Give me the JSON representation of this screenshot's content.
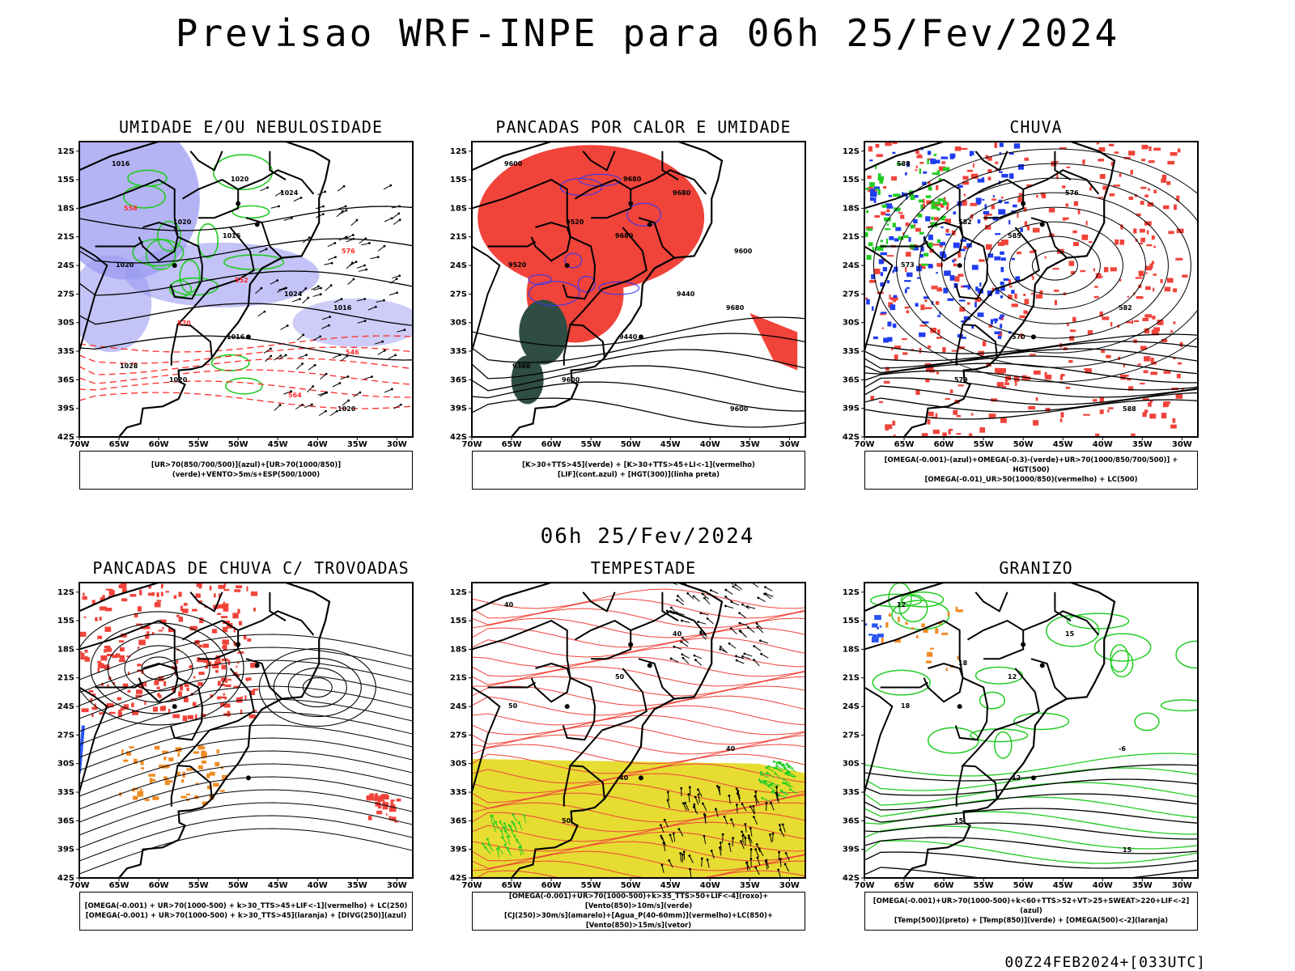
{
  "title": "Previsao WRF-INPE  para 06h 25/Fev/2024",
  "mid_title": "06h 25/Fev/2024",
  "run_stamp": "00Z24FEB2024+[033UTC]",
  "axes": {
    "lat_labels": [
      "12S",
      "15S",
      "18S",
      "21S",
      "24S",
      "27S",
      "30S",
      "33S",
      "36S",
      "39S",
      "42S"
    ],
    "lon_labels": [
      "70W",
      "65W",
      "60W",
      "55W",
      "50W",
      "45W",
      "40W",
      "35W",
      "30W"
    ]
  },
  "panels": [
    {
      "id": "umidade",
      "title": "UMIDADE E/OU NEBULOSIDADE",
      "legend": [
        "[UR>70(850/700/500)](azul)+[UR>70(1000/850)](verde)+VENTO>5m/s+ESP(500/1000)"
      ],
      "contour_labels": [
        "1016",
        "1016",
        "1016",
        "1020",
        "1024",
        "1020",
        "1016",
        "1020",
        "1020",
        "1024",
        "1028",
        "1020",
        "576",
        "570",
        "564",
        "558",
        "552",
        "546"
      ],
      "colors": {
        "shade": "#9b9bf2",
        "contour": "#22cc22",
        "dashed": "#ff2a2a"
      }
    },
    {
      "id": "pancadas_calor",
      "title": "PANCADAS POR CALOR E UMIDADE",
      "legend": [
        "[K>30+TTS>45](verde) + [K>30+TTS>45+LI<-1](vermelho)",
        "[LIF](cont.azul) + [HGT(300)](linha preta)"
      ],
      "contour_labels": [
        "9600",
        "9680",
        "9680",
        "9600",
        "9680",
        "9520",
        "9440",
        "9600",
        "9520",
        "9440",
        "9360",
        "9680",
        "9600"
      ],
      "colors": {
        "red": "#f0433a",
        "green": "#2f4d45",
        "blue": "#3737f0"
      }
    },
    {
      "id": "chuva",
      "title": "CHUVA",
      "legend": [
        "[OMEGA(-0.001)-(azul)+OMEGA(-0.3)-(verde)+UR>70(1000/850/700/500)] + HGT(500)",
        "[OMEGA(-0.01)_UR>50(1000/850)(vermelho) + LC(500)"
      ],
      "contour_labels": [
        "588",
        "585",
        "582",
        "579",
        "576",
        "573",
        "570",
        "588",
        "582"
      ],
      "colors": {
        "red": "#f0433a",
        "blue": "#1f3cf0",
        "green": "#22cc22"
      }
    },
    {
      "id": "pancadas_trovoadas",
      "title": "PANCADAS DE CHUVA C/ TROVOADAS",
      "legend": [
        "[OMEGA(-0.001) + UR>70(1000-500) + k>30_TTS>45+LIF<-1](vermelho) + LC(250)",
        "[OMEGA(-0.001) + UR>70(1000-500) + k>30_TTS>45](laranja) + [DIVG(250)](azul)"
      ],
      "contour_labels": [],
      "colors": {
        "red": "#f0433a",
        "orange": "#f08a22",
        "blue": "#2b55f0"
      }
    },
    {
      "id": "tempestade",
      "title": "TEMPESTADE",
      "legend": [
        "[OMEGA(-0.001)+UR>70(1000-500)+k>35_TTS>50+LIF<-4](roxo)+[Vento(850)>10m/s](verde)",
        "[CJ(250)>30m/s](amarelo)+[Agua_P(40-60mm)](vermelho)+LC(850)+[Vento(850)>15m/s](vetor)"
      ],
      "contour_labels": [
        "40",
        "50",
        "40",
        "50",
        "40",
        "50",
        "40"
      ],
      "colors": {
        "yellow": "#e6dc32",
        "red": "#f0433a",
        "green": "#22cc22"
      }
    },
    {
      "id": "granizo",
      "title": "GRANIZO",
      "legend": [
        "[OMEGA(-0.001)+UR>70(1000-500)+k<60+TTS>52+VT>25+SWEAT>220+LIF<-2](azul)",
        "[Temp(500)](preto) + [Temp(850)](verde) + [OMEGA(500)<-2](laranja)"
      ],
      "contour_labels": [
        "12",
        "12",
        "-6",
        "15",
        "15",
        "18",
        "12",
        "15",
        "18"
      ],
      "colors": {
        "green": "#22cc22",
        "orange": "#f08a22",
        "blue": "#2b55f0"
      }
    }
  ]
}
